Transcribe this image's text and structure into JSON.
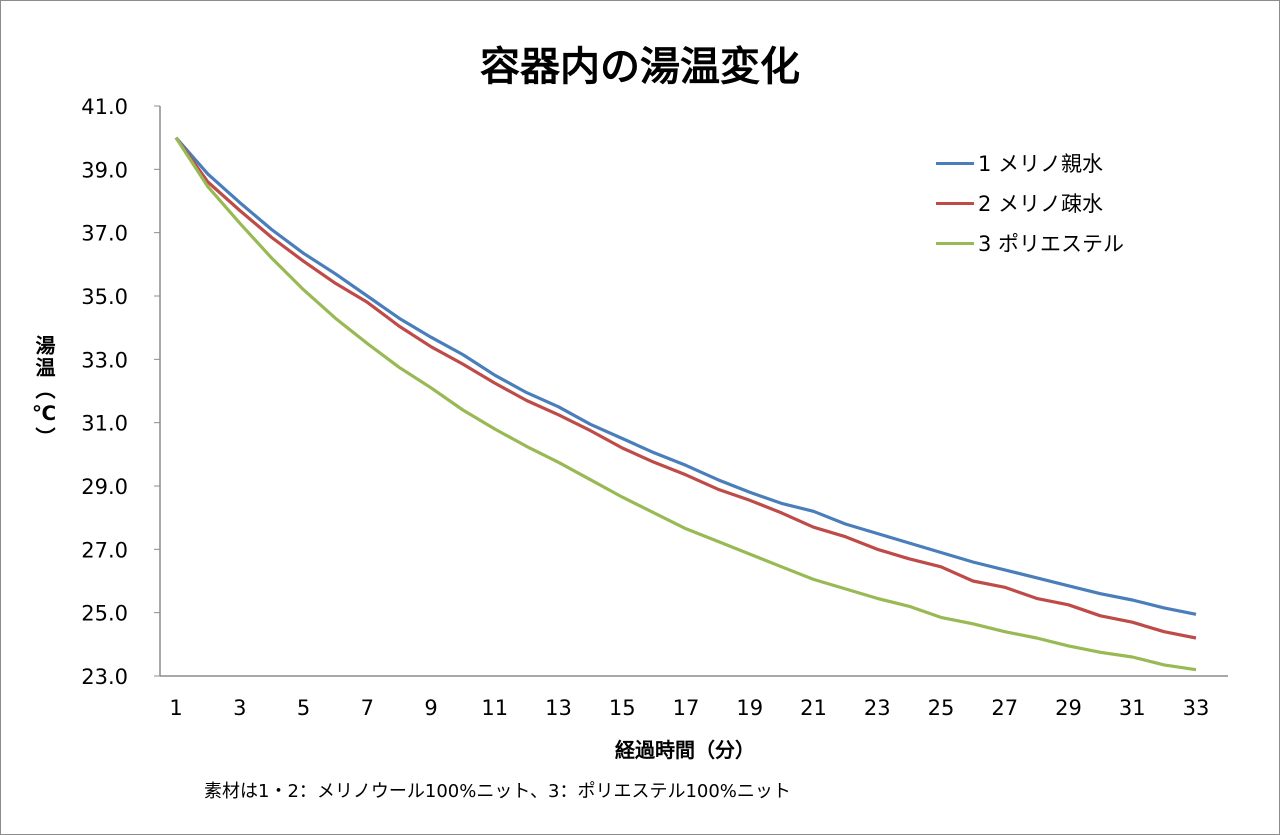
{
  "chart_data": {
    "type": "line",
    "title": "容器内の湯温変化",
    "xlabel": "経過時間（分）",
    "ylabel": "湯温（℃）",
    "note": "素材は1・2：メリノウール100%ニット、3：ポリエステル100%ニット",
    "x": [
      1,
      2,
      3,
      4,
      5,
      6,
      7,
      8,
      9,
      10,
      11,
      12,
      13,
      14,
      15,
      16,
      17,
      18,
      19,
      20,
      21,
      22,
      23,
      24,
      25,
      26,
      27,
      28,
      29,
      30,
      31,
      32,
      33
    ],
    "x_tick_labels": [
      "1",
      "3",
      "5",
      "7",
      "9",
      "11",
      "13",
      "15",
      "17",
      "19",
      "21",
      "23",
      "25",
      "27",
      "29",
      "31",
      "33"
    ],
    "y_tick_labels": [
      "23.0",
      "25.0",
      "27.0",
      "29.0",
      "31.0",
      "33.0",
      "35.0",
      "37.0",
      "39.0",
      "41.0"
    ],
    "ylim": [
      23,
      41
    ],
    "grid": false,
    "legend_position": "top-right",
    "series": [
      {
        "name": "1 メリノ親水",
        "color": "#4a7ebb",
        "values": [
          40.0,
          38.85,
          37.95,
          37.1,
          36.35,
          35.7,
          35.0,
          34.3,
          33.7,
          33.15,
          32.5,
          31.95,
          31.5,
          30.95,
          30.5,
          30.05,
          29.65,
          29.2,
          28.8,
          28.45,
          28.2,
          27.8,
          27.5,
          27.2,
          26.9,
          26.6,
          26.35,
          26.1,
          25.85,
          25.6,
          25.4,
          25.15,
          24.95
        ]
      },
      {
        "name": "2 メリノ疎水",
        "color": "#be4b48",
        "values": [
          40.0,
          38.6,
          37.7,
          36.85,
          36.1,
          35.4,
          34.8,
          34.05,
          33.4,
          32.85,
          32.25,
          31.7,
          31.25,
          30.75,
          30.2,
          29.75,
          29.35,
          28.9,
          28.55,
          28.15,
          27.7,
          27.4,
          27.0,
          26.7,
          26.45,
          26.0,
          25.8,
          25.45,
          25.25,
          24.9,
          24.7,
          24.4,
          24.2
        ]
      },
      {
        "name": "3 ポリエステル",
        "color": "#98b954",
        "values": [
          40.0,
          38.45,
          37.3,
          36.2,
          35.2,
          34.3,
          33.5,
          32.75,
          32.1,
          31.4,
          30.8,
          30.25,
          29.75,
          29.2,
          28.65,
          28.15,
          27.65,
          27.25,
          26.85,
          26.45,
          26.05,
          25.75,
          25.45,
          25.2,
          24.85,
          24.65,
          24.4,
          24.2,
          23.95,
          23.75,
          23.6,
          23.35,
          23.2
        ]
      }
    ]
  }
}
